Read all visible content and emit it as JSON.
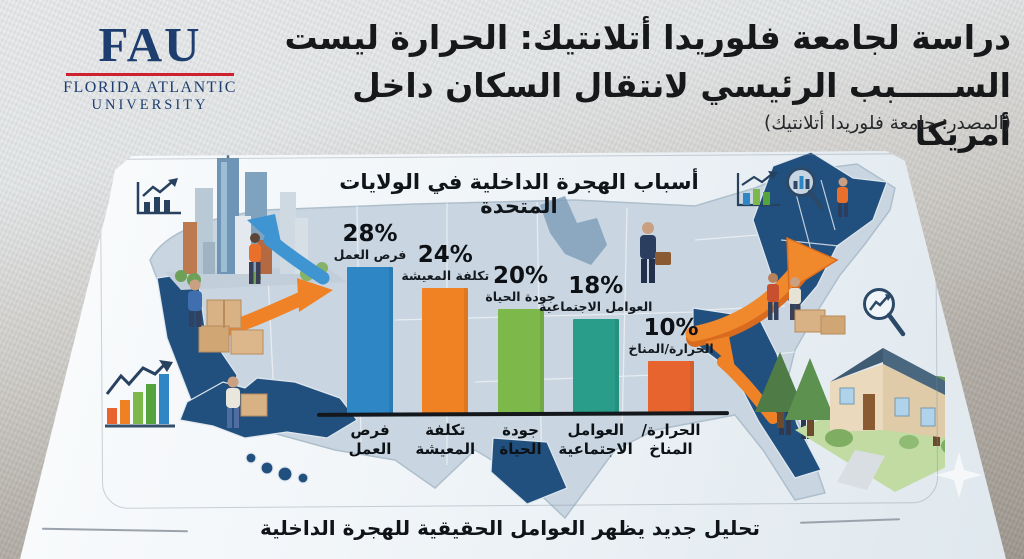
{
  "header": {
    "logo": {
      "acronym": "FAU",
      "line1": "FLORIDA ATLANTIC",
      "line2": "UNIVERSITY"
    },
    "title_line1": "دراسة لجامعة فلوريدا أتلانتيك: الحرارة ليست",
    "title_line2": "الســـــبب الرئيسي لانتقال السكان داخل أمريكا",
    "source": "(المصدر: جامعة فلوريدا أتلانتيك)"
  },
  "chart": {
    "title": "أسباب الهجرة الداخلية في الولايات المتحدة",
    "bars": [
      {
        "pct": "28%",
        "value": 28,
        "label": "فرص العمل",
        "axis_label": "فرص\nالعمل",
        "color": "#2e86c5"
      },
      {
        "pct": "24%",
        "value": 24,
        "label": "تكلفة المعيشة",
        "axis_label": "تكلفة\nالمعيشة",
        "color": "#f08223"
      },
      {
        "pct": "20%",
        "value": 20,
        "label": "جودة الحياة",
        "axis_label": "جودة\nالحياة",
        "color": "#7cb84a"
      },
      {
        "pct": "18%",
        "value": 18,
        "label": "العوامل الاجتماعية",
        "axis_label": "العوامل\nالاجتماعية",
        "color": "#2a9d8a"
      },
      {
        "pct": "10%",
        "value": 10,
        "label": "الحرارة/المناخ",
        "axis_label": "الحرارة/\nالمناخ",
        "color": "#e8642f"
      }
    ]
  },
  "caption": "تحليل جديد يظهر العوامل الحقيقية للهجرة الداخلية",
  "chart_data": {
    "type": "bar",
    "title": "أسباب الهجرة الداخلية في الولايات المتحدة",
    "categories": [
      "فرص العمل",
      "تكلفة المعيشة",
      "جودة الحياة",
      "العوامل الاجتماعية",
      "الحرارة/المناخ"
    ],
    "values": [
      28,
      24,
      20,
      18,
      10
    ],
    "value_labels": [
      "28%",
      "24%",
      "20%",
      "18%",
      "10%"
    ],
    "xlabel": "",
    "ylabel": "",
    "ylim": [
      0,
      30
    ],
    "grid": false,
    "legend": "none",
    "bar_colors": [
      "#2e86c5",
      "#f08223",
      "#7cb84a",
      "#2a9d8a",
      "#e8642f"
    ]
  },
  "icons": {
    "trend_chart": "navy line-and-bars growth chart",
    "bar_chart_colorful": "multicolor bar chart with rising arrow",
    "growth_chart_small": "small bar chart with rising arrow",
    "magnifier_bars": "magnifying glass over bar chart",
    "magnifier_trend": "magnifying glass over trend line",
    "sparkle": "four-point star sparkle"
  },
  "colors": {
    "bar_blue": "#2e86c5",
    "bar_orange": "#f08223",
    "bar_green": "#7cb84a",
    "bar_teal": "#2a9d8a",
    "bar_red": "#e8642f",
    "map_dark_state": "#21507f",
    "map_light": "#c9d5e0",
    "arrow_orange": "#ef8227",
    "arrow_blue": "#3e95d2",
    "fau_navy": "#1d3e6f",
    "fau_red": "#cf2030",
    "text_dark": "#17181a",
    "wall_light": "#e8eaec",
    "wall_dark": "#9c968e"
  }
}
